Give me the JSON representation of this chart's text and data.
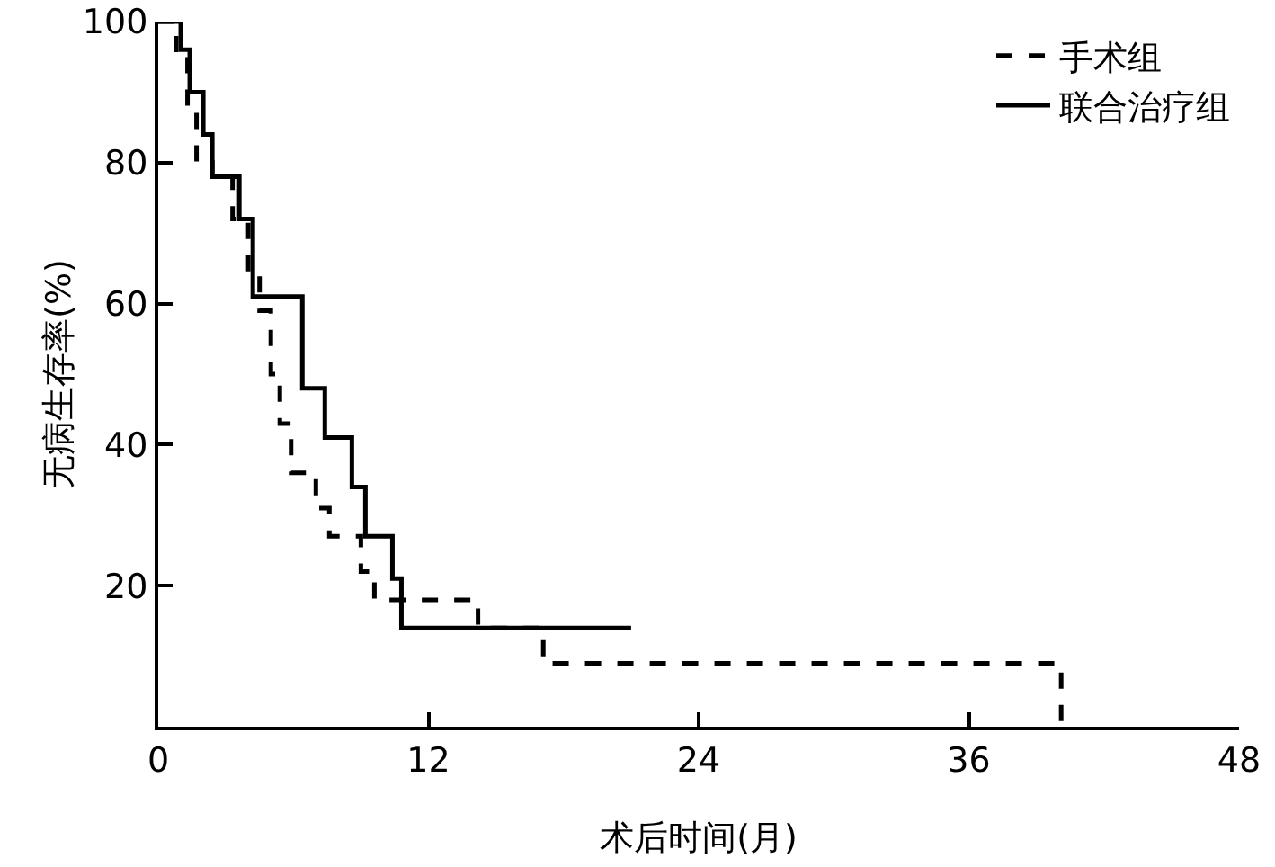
{
  "chart_data": {
    "type": "step",
    "xlabel": "术后时间(月)",
    "ylabel": "无病生存率(%)",
    "xlim": [
      0,
      48
    ],
    "xticks": [
      0,
      12,
      24,
      36,
      48
    ],
    "ylim": [
      0,
      100
    ],
    "yticks": [
      20,
      40,
      60,
      80,
      100
    ],
    "legend": "top right",
    "grid": false,
    "series": [
      {
        "name": "手术组",
        "color": "#000000",
        "line_style": "dashed",
        "x": [
          0,
          0.8,
          1.3,
          1.7,
          2.4,
          3.3,
          4.0,
          4.5,
          5.0,
          5.4,
          5.9,
          7.0,
          7.6,
          9.0,
          9.6,
          14.2,
          17.1,
          40.1
        ],
        "values": [
          100,
          95,
          88,
          80,
          78,
          72,
          64,
          59,
          50,
          43,
          36,
          31,
          27,
          22,
          18,
          14,
          9,
          0
        ]
      },
      {
        "name": "联合治疗组",
        "color": "#000000",
        "line_style": "solid",
        "x": [
          0,
          1.0,
          1.4,
          2.0,
          2.4,
          3.6,
          4.2,
          6.4,
          7.4,
          8.6,
          9.2,
          10.4,
          10.8,
          21.0
        ],
        "values": [
          100,
          96,
          90,
          84,
          78,
          72,
          61,
          48,
          41,
          34,
          27,
          21,
          14,
          14
        ]
      }
    ]
  }
}
